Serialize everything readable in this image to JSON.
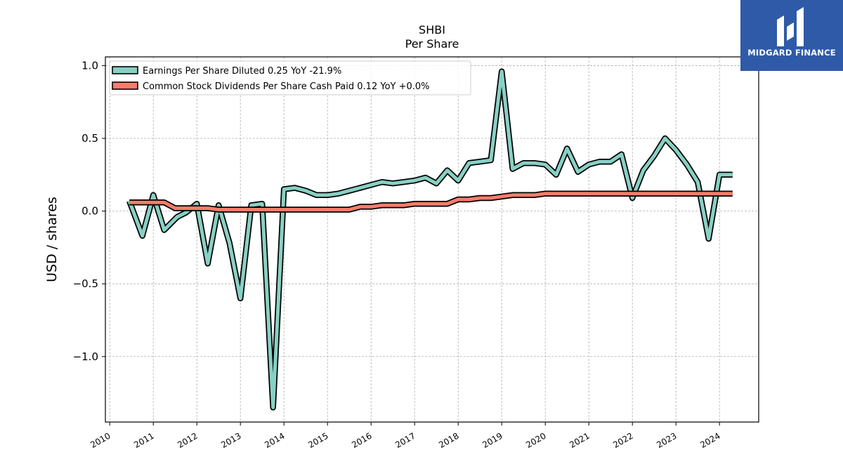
{
  "chart_data": {
    "type": "line",
    "title": "SHBI",
    "subtitle": "Per  Share",
    "xlabel": "",
    "ylabel": "USD / shares",
    "xlim": [
      2009.9,
      2024.9
    ],
    "ylim": [
      -1.45,
      1.06
    ],
    "grid": true,
    "legend_position": "top-left",
    "x_ticks": [
      2010,
      2011,
      2012,
      2013,
      2014,
      2015,
      2016,
      2017,
      2018,
      2019,
      2020,
      2021,
      2022,
      2023,
      2024
    ],
    "x_tick_labels": [
      "2010",
      "2011",
      "2012",
      "2013",
      "2014",
      "2015",
      "2016",
      "2017",
      "2018",
      "2019",
      "2020",
      "2021",
      "2022",
      "2023",
      "2024"
    ],
    "y_ticks": [
      1.0,
      0.5,
      0.0,
      -0.5,
      -1.0
    ],
    "y_tick_labels": [
      "1.0",
      "0.5",
      "0.0",
      "−0.5",
      "−1.0"
    ],
    "series": [
      {
        "name": "Earnings Per Share Diluted  0.25 YoY -21.9%",
        "color": "#88d0c4",
        "x": [
          2010.45,
          2010.75,
          2011.0,
          2011.25,
          2011.55,
          2011.75,
          2012.0,
          2012.25,
          2012.5,
          2012.75,
          2013.0,
          2013.25,
          2013.5,
          2013.75,
          2014.0,
          2014.25,
          2014.5,
          2014.75,
          2015.0,
          2015.25,
          2015.5,
          2015.75,
          2016.0,
          2016.25,
          2016.5,
          2016.75,
          2017.0,
          2017.25,
          2017.5,
          2017.75,
          2018.0,
          2018.25,
          2018.5,
          2018.75,
          2019.0,
          2019.25,
          2019.5,
          2019.75,
          2020.0,
          2020.25,
          2020.5,
          2020.75,
          2021.0,
          2021.25,
          2021.5,
          2021.75,
          2022.0,
          2022.25,
          2022.5,
          2022.75,
          2023.0,
          2023.25,
          2023.5,
          2023.75,
          2024.0,
          2024.3
        ],
        "values": [
          0.07,
          -0.17,
          0.11,
          -0.13,
          -0.04,
          -0.01,
          0.05,
          -0.36,
          0.04,
          -0.22,
          -0.6,
          0.04,
          0.05,
          -1.35,
          0.15,
          0.16,
          0.14,
          0.11,
          0.11,
          0.12,
          0.14,
          0.16,
          0.18,
          0.2,
          0.19,
          0.2,
          0.21,
          0.23,
          0.19,
          0.28,
          0.21,
          0.33,
          0.34,
          0.35,
          0.96,
          0.29,
          0.33,
          0.33,
          0.32,
          0.25,
          0.43,
          0.27,
          0.32,
          0.34,
          0.34,
          0.39,
          0.09,
          0.28,
          0.38,
          0.5,
          0.42,
          0.32,
          0.2,
          -0.19,
          0.25,
          0.25
        ]
      },
      {
        "name": "Common Stock Dividends Per Share Cash Paid  0.12 YoY +0.0%",
        "color": "#f87c6a",
        "x": [
          2010.45,
          2011.25,
          2011.5,
          2012.25,
          2012.5,
          2015.5,
          2015.75,
          2016.0,
          2016.25,
          2016.75,
          2017.0,
          2017.75,
          2018.0,
          2018.25,
          2018.5,
          2018.75,
          2019.0,
          2019.25,
          2019.75,
          2020.0,
          2024.3
        ],
        "values": [
          0.06,
          0.06,
          0.02,
          0.02,
          0.01,
          0.01,
          0.03,
          0.03,
          0.04,
          0.04,
          0.05,
          0.05,
          0.08,
          0.08,
          0.09,
          0.09,
          0.1,
          0.11,
          0.11,
          0.12,
          0.12
        ]
      }
    ]
  },
  "logo": {
    "text": "MIDGARD FINANCE",
    "background": "#2e5aa8"
  }
}
